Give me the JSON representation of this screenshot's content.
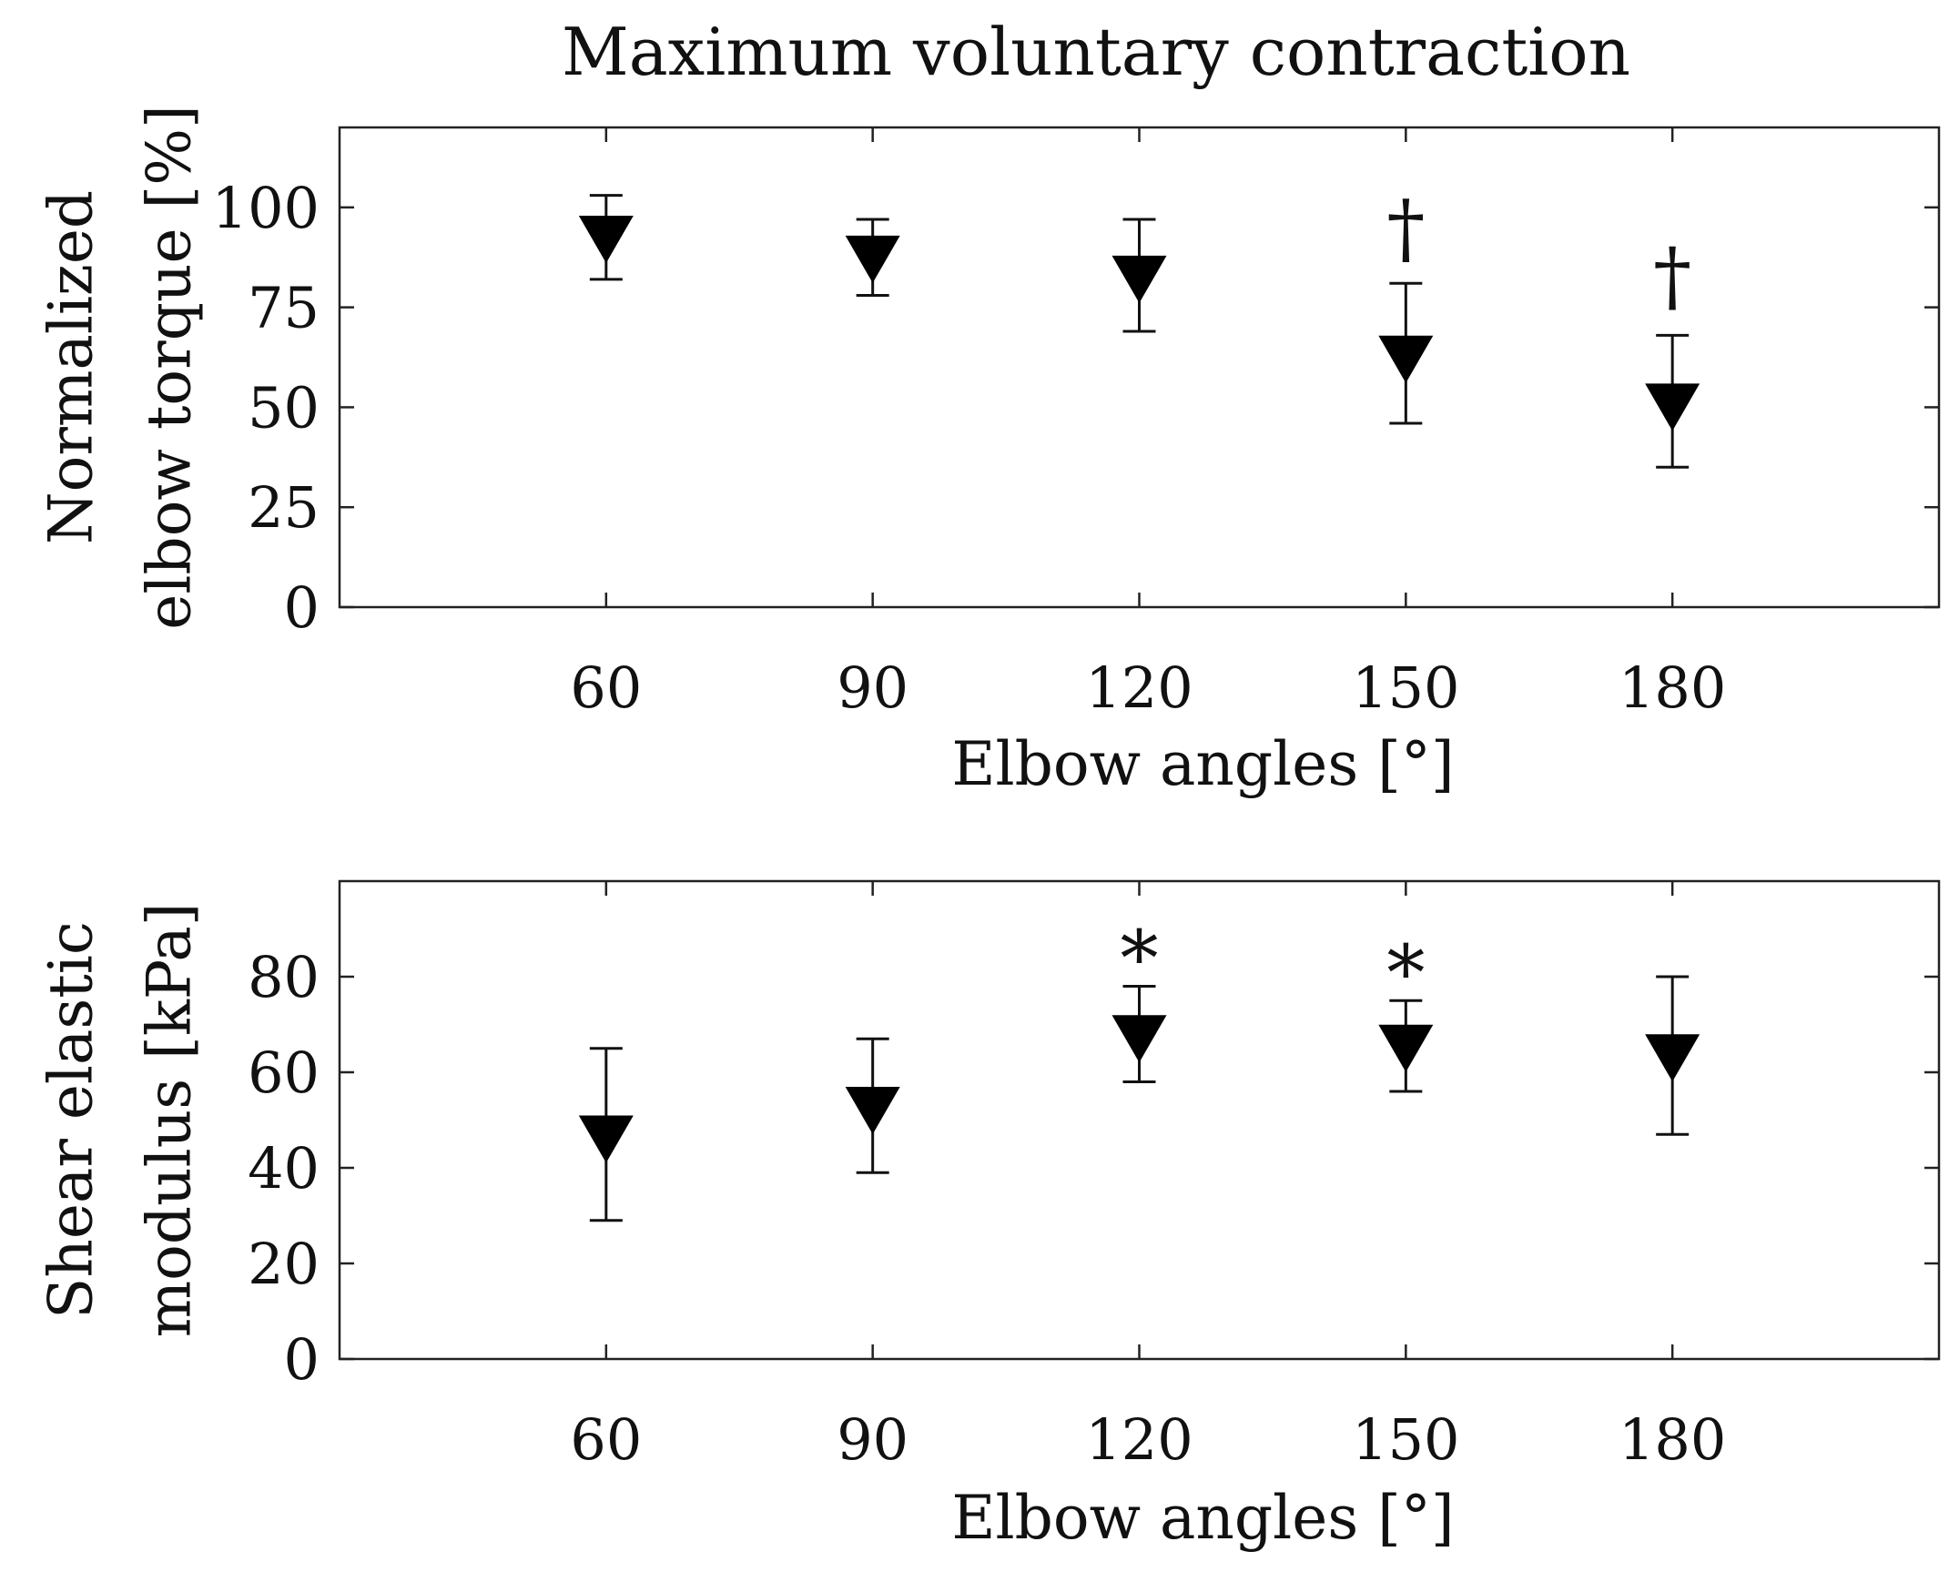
{
  "chart_data": [
    {
      "type": "scatter",
      "title": "Maximum voluntary contraction",
      "xlabel": "Elbow angles [°]",
      "ylabel_line1": "Normalized",
      "ylabel_line2": "elbow torque [%]",
      "x": [
        60,
        90,
        120,
        150,
        180
      ],
      "x_tick_labels": [
        "60",
        "90",
        "120",
        "150",
        "180"
      ],
      "xlim": [
        30,
        210
      ],
      "ylim": [
        0,
        120
      ],
      "y_ticks": [
        0,
        25,
        50,
        75,
        100
      ],
      "y_tick_labels": [
        "0",
        "25",
        "50",
        "75",
        "100"
      ],
      "marker": "down-triangle",
      "mean": [
        92,
        87,
        82,
        62,
        50
      ],
      "error_upper": [
        103,
        97,
        97,
        81,
        68
      ],
      "error_lower": [
        82,
        78,
        69,
        46,
        35
      ],
      "annotations": [
        {
          "x": 150,
          "y": 95,
          "text": "†"
        },
        {
          "x": 180,
          "y": 83,
          "text": "†"
        }
      ]
    },
    {
      "type": "scatter",
      "title": "",
      "xlabel": "Elbow angles [°]",
      "ylabel_line1": "Shear elastic",
      "ylabel_line2": "modulus [kPa]",
      "x": [
        60,
        90,
        120,
        150,
        180
      ],
      "x_tick_labels": [
        "60",
        "90",
        "120",
        "150",
        "180"
      ],
      "xlim": [
        30,
        210
      ],
      "ylim": [
        0,
        100
      ],
      "y_ticks": [
        0,
        20,
        40,
        60,
        80
      ],
      "y_tick_labels": [
        "0",
        "20",
        "40",
        "60",
        "80"
      ],
      "marker": "down-triangle",
      "mean": [
        46,
        52,
        67,
        65,
        63
      ],
      "error_upper": [
        65,
        67,
        78,
        75,
        80
      ],
      "error_lower": [
        29,
        39,
        58,
        56,
        47
      ],
      "annotations": [
        {
          "x": 120,
          "y": 84,
          "text": "*"
        },
        {
          "x": 150,
          "y": 81,
          "text": "*"
        }
      ]
    }
  ]
}
